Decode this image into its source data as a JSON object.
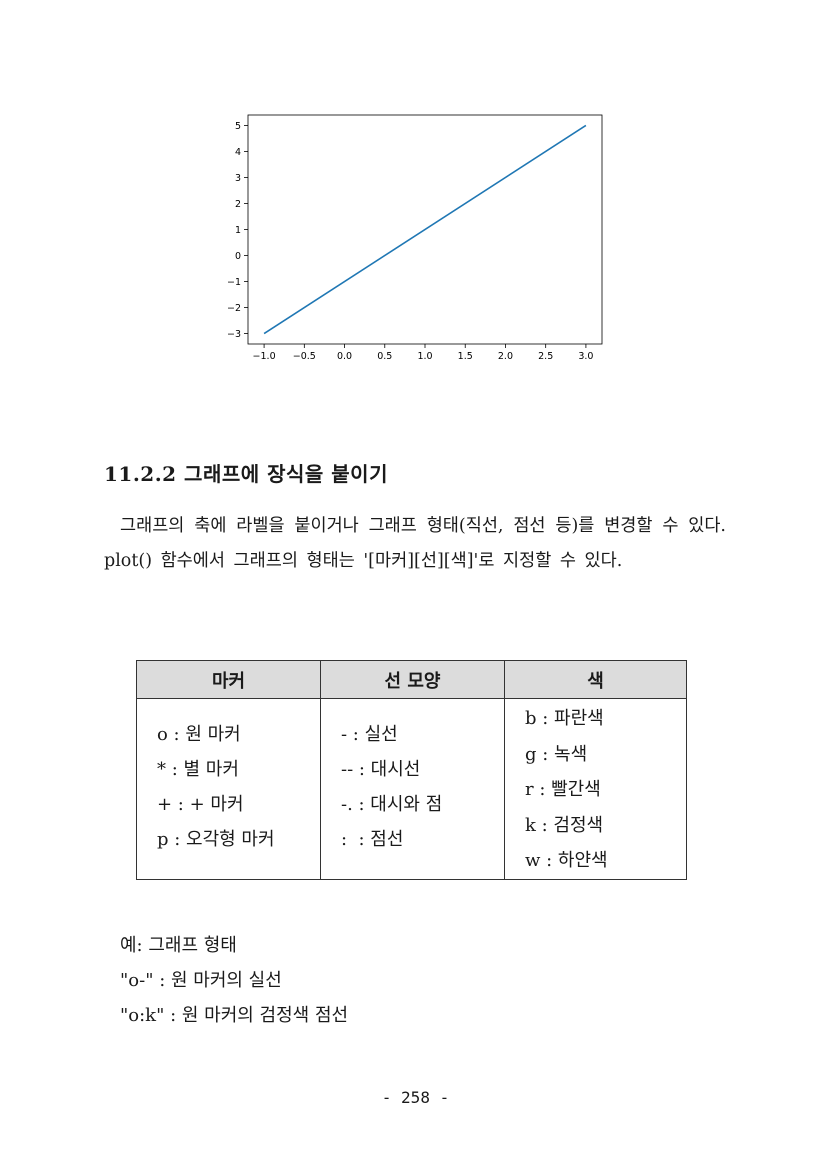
{
  "chart_data": {
    "type": "line",
    "x": [
      -1.0,
      3.0
    ],
    "series": [
      {
        "values": [
          -3,
          5
        ],
        "color": "#1f77b4"
      }
    ],
    "xticks": [
      "−1.0",
      "−0.5",
      "0.0",
      "0.5",
      "1.0",
      "1.5",
      "2.0",
      "2.5",
      "3.0"
    ],
    "yticks": [
      "5",
      "4",
      "3",
      "2",
      "1",
      "0",
      "−1",
      "−2",
      "−3"
    ],
    "xlim": [
      -1.2,
      3.2
    ],
    "ylim": [
      -3.4,
      5.4
    ],
    "grid": false
  },
  "section": {
    "heading": "11.2.2 그래프에 장식을 붙이기",
    "paragraph": "그래프의 축에 라벨을 붙이거나 그래프 형태(직선, 점선 등)를 변경할 수 있다. plot() 함수에서 그래프의 형태는 '[마커][선][색]'로 지정할 수 있다."
  },
  "table": {
    "headers": [
      "마커",
      "선 모양",
      "색"
    ],
    "markers": [
      "o : 원 마커",
      "* : 별 마커",
      "+ : + 마커",
      "p : 오각형 마커"
    ],
    "lines": [
      "- : 실선",
      "-- : 대시선",
      "-. : 대시와 점",
      ":  : 점선"
    ],
    "colors": [
      "b : 파란색",
      "g : 녹색",
      "r : 빨간색",
      "k : 검정색",
      "w : 하얀색"
    ]
  },
  "examples": [
    "예: 그래프 형태",
    "\"o-\" : 원 마커의 실선",
    "\"o:k\" : 원 마커의 검정색 점선"
  ],
  "page_number": "- 258 -"
}
